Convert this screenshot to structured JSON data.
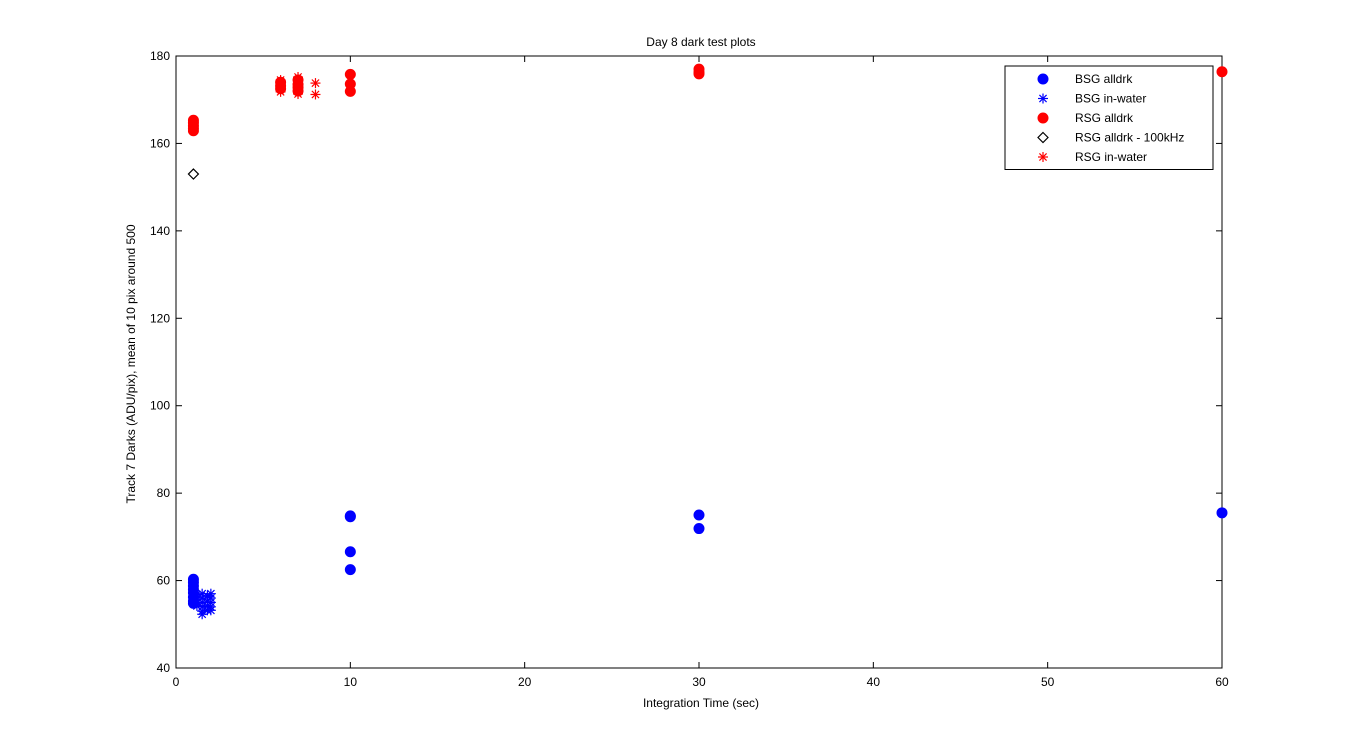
{
  "chart_data": {
    "type": "scatter",
    "title": "Day 8 dark test plots",
    "xlabel": "Integration Time (sec)",
    "ylabel": "Track 7 Darks (ADU/pix), mean of 10 pix around 500",
    "xlim": [
      0,
      60
    ],
    "ylim": [
      40,
      180
    ],
    "xticks": [
      0,
      10,
      20,
      30,
      40,
      50,
      60
    ],
    "yticks": [
      40,
      60,
      80,
      100,
      120,
      140,
      160,
      180
    ],
    "grid": false,
    "legend_position": "top-right",
    "series": [
      {
        "name": "BSG alldrk",
        "marker": "circle-filled",
        "color": "#0000ff",
        "points": [
          [
            1,
            60.3
          ],
          [
            1,
            59.6
          ],
          [
            1,
            58.8
          ],
          [
            1,
            58.0
          ],
          [
            1,
            57.2
          ],
          [
            1,
            56.2
          ],
          [
            1,
            55.3
          ],
          [
            1,
            54.8
          ],
          [
            10,
            74.8
          ],
          [
            10,
            74.6
          ],
          [
            10,
            66.6
          ],
          [
            10,
            62.5
          ],
          [
            30,
            75.0
          ],
          [
            30,
            71.9
          ],
          [
            60,
            75.5
          ]
        ]
      },
      {
        "name": "BSG in-water",
        "marker": "asterisk",
        "color": "#0000ff",
        "points": [
          [
            1,
            57.4
          ],
          [
            1,
            56.5
          ],
          [
            1,
            55.6
          ],
          [
            1,
            54.8
          ],
          [
            1.2,
            56.8
          ],
          [
            1.2,
            55.0
          ],
          [
            1.2,
            54.2
          ],
          [
            1.5,
            57.0
          ],
          [
            1.5,
            56.0
          ],
          [
            1.5,
            55.0
          ],
          [
            1.5,
            54.0
          ],
          [
            1.5,
            53.0
          ],
          [
            1.5,
            52.3
          ],
          [
            1.8,
            56.5
          ],
          [
            1.8,
            55.3
          ],
          [
            1.8,
            54.2
          ],
          [
            1.8,
            53.2
          ],
          [
            2,
            57.0
          ],
          [
            2,
            56.0
          ],
          [
            2,
            55.0
          ],
          [
            2,
            54.0
          ],
          [
            2,
            53.2
          ]
        ]
      },
      {
        "name": "RSG alldrk",
        "marker": "circle-filled",
        "color": "#ff0000",
        "points": [
          [
            1,
            165.3
          ],
          [
            1,
            164.7
          ],
          [
            1,
            164.0
          ],
          [
            1,
            163.4
          ],
          [
            1,
            162.9
          ],
          [
            6,
            174.0
          ],
          [
            6,
            173.2
          ],
          [
            6,
            172.5
          ],
          [
            7,
            174.5
          ],
          [
            7,
            173.5
          ],
          [
            7,
            172.8
          ],
          [
            7,
            172.0
          ],
          [
            10,
            175.8
          ],
          [
            10,
            173.6
          ],
          [
            10,
            171.9
          ],
          [
            30,
            177.0
          ],
          [
            30,
            176.3
          ],
          [
            30,
            175.9
          ],
          [
            60,
            176.4
          ]
        ]
      },
      {
        "name": "RSG alldrk - 100kHz",
        "marker": "diamond-open",
        "color": "#000000",
        "points": [
          [
            1,
            153.0
          ]
        ]
      },
      {
        "name": "RSG in-water",
        "marker": "asterisk",
        "color": "#ff0000",
        "points": [
          [
            6,
            174.5
          ],
          [
            6,
            173.0
          ],
          [
            6,
            171.8
          ],
          [
            7,
            175.2
          ],
          [
            7,
            173.8
          ],
          [
            7,
            172.5
          ],
          [
            7,
            171.3
          ],
          [
            8,
            173.8
          ],
          [
            8,
            171.2
          ]
        ]
      }
    ]
  }
}
